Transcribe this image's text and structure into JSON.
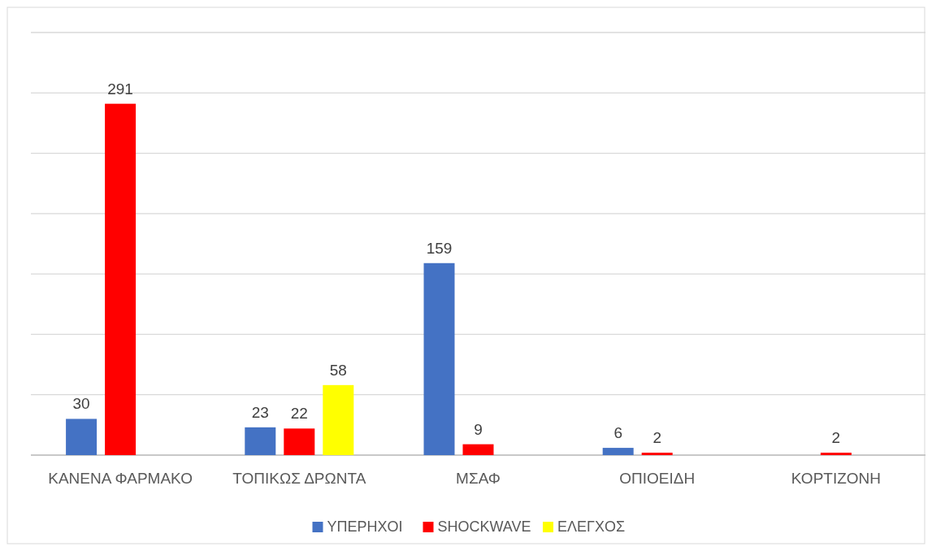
{
  "chart_data": {
    "type": "bar",
    "categories": [
      "ΚΑΝΕΝΑ ΦΑΡΜΑΚΟ",
      "ΤΟΠΙΚΩΣ ΔΡΩΝΤΑ",
      "ΜΣΑΦ",
      "ΟΠΙΟΕΙΔΗ",
      "ΚΟΡΤΙΖΟΝΗ"
    ],
    "series": [
      {
        "name": "ΥΠΕΡΗΧΟΙ",
        "color": "#4472c4",
        "values": [
          30,
          23,
          159,
          6,
          null
        ]
      },
      {
        "name": "SHOCKWAVE",
        "color": "#ff0000",
        "values": [
          291,
          22,
          9,
          2,
          2
        ]
      },
      {
        "name": "ΕΛΕΓΧΟΣ",
        "color": "#ffff00",
        "values": [
          null,
          58,
          null,
          null,
          null
        ]
      }
    ],
    "ylim": [
      0,
      350
    ],
    "yticks": [
      {
        "value": 0,
        "label": null
      },
      {
        "value": 50,
        "label": null
      },
      {
        "value": 100,
        "label": null
      },
      {
        "value": 150,
        "label": null
      },
      {
        "value": 200,
        "label": null
      },
      {
        "value": 250,
        "label": null
      },
      {
        "value": 300,
        "label": null
      },
      {
        "value": 350,
        "label": null
      }
    ],
    "grid": "y",
    "tick_labels": "x",
    "data_labels": true,
    "legend": "bottom"
  }
}
